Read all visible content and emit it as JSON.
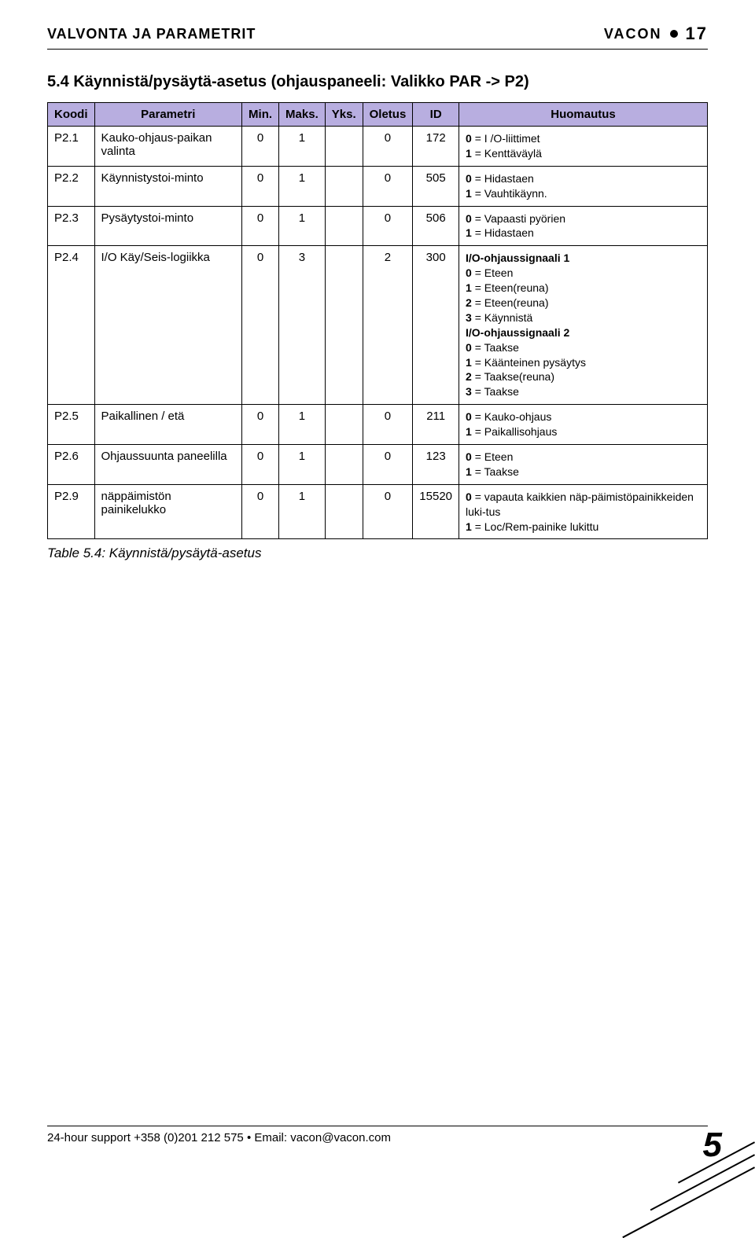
{
  "header": {
    "left": "VALVONTA JA PARAMETRIT",
    "brand": "VACON",
    "pageNum": "17"
  },
  "section": {
    "title": "5.4 Käynnistä/pysäytä-asetus (ohjauspaneeli: Valikko PAR -> P2)"
  },
  "table": {
    "headerBg": "#b8aee0",
    "columns": [
      "Koodi",
      "Parametri",
      "Min.",
      "Maks.",
      "Yks.",
      "Oletus",
      "ID",
      "Huomautus"
    ],
    "rows": [
      {
        "koodi": "P2.1",
        "parametri": "Kauko-ohjaus-paikan valinta",
        "min": "0",
        "maks": "1",
        "yks": "",
        "oletus": "0",
        "id": "172",
        "huom": "<b>0</b> = I /O-liittimet<br><b>1</b> = Kenttäväylä"
      },
      {
        "koodi": "P2.2",
        "parametri": "Käynnistystoi-minto",
        "min": "0",
        "maks": "1",
        "yks": "",
        "oletus": "0",
        "id": "505",
        "huom": "<b>0</b> = Hidastaen<br><b>1</b> = Vauhtikäynn."
      },
      {
        "koodi": "P2.3",
        "parametri": "Pysäytystoi-minto",
        "min": "0",
        "maks": "1",
        "yks": "",
        "oletus": "0",
        "id": "506",
        "huom": "<b>0</b> = Vapaasti pyörien<br><b>1</b> = Hidastaen"
      },
      {
        "koodi": "P2.4",
        "parametri": "I/O Käy/Seis-logiikka",
        "min": "0",
        "maks": "3",
        "yks": "",
        "oletus": "2",
        "id": "300",
        "huom": "<b>I/O-ohjaussignaali 1</b><br><b>0</b> = Eteen<br><b>1</b> = Eteen(reuna)<br><b>2</b> = Eteen(reuna)<br><b>3</b> = Käynnistä<br><b>I/O-ohjaussignaali 2</b><br><b>0</b> = Taakse<br><b>1</b> = Käänteinen pysäytys<br><b>2</b> = Taakse(reuna)<br><b>3</b> = Taakse"
      },
      {
        "koodi": "P2.5",
        "parametri": "Paikallinen / etä",
        "min": "0",
        "maks": "1",
        "yks": "",
        "oletus": "0",
        "id": "211",
        "huom": "<b>0</b> = Kauko-ohjaus<br><b>1</b> = Paikallisohjaus"
      },
      {
        "koodi": "P2.6",
        "parametri": "Ohjaussuunta paneelilla",
        "min": "0",
        "maks": "1",
        "yks": "",
        "oletus": "0",
        "id": "123",
        "huom": "<b>0</b> = Eteen<br><b>1</b> = Taakse"
      },
      {
        "koodi": "P2.9",
        "parametri": "näppäimistön painikelukko",
        "min": "0",
        "maks": "1",
        "yks": "",
        "oletus": "0",
        "id": "15520",
        "huom": "<b>0</b> = vapauta kaikkien näp-päimistöpainikkeiden luki-tus<br><b>1</b> = Loc/Rem-painike lukittu"
      }
    ]
  },
  "caption": "Table 5.4: Käynnistä/pysäytä-asetus",
  "footer": {
    "text": "24-hour support +358 (0)201 212 575 • Email: vacon@vacon.com",
    "chapterNum": "5"
  }
}
